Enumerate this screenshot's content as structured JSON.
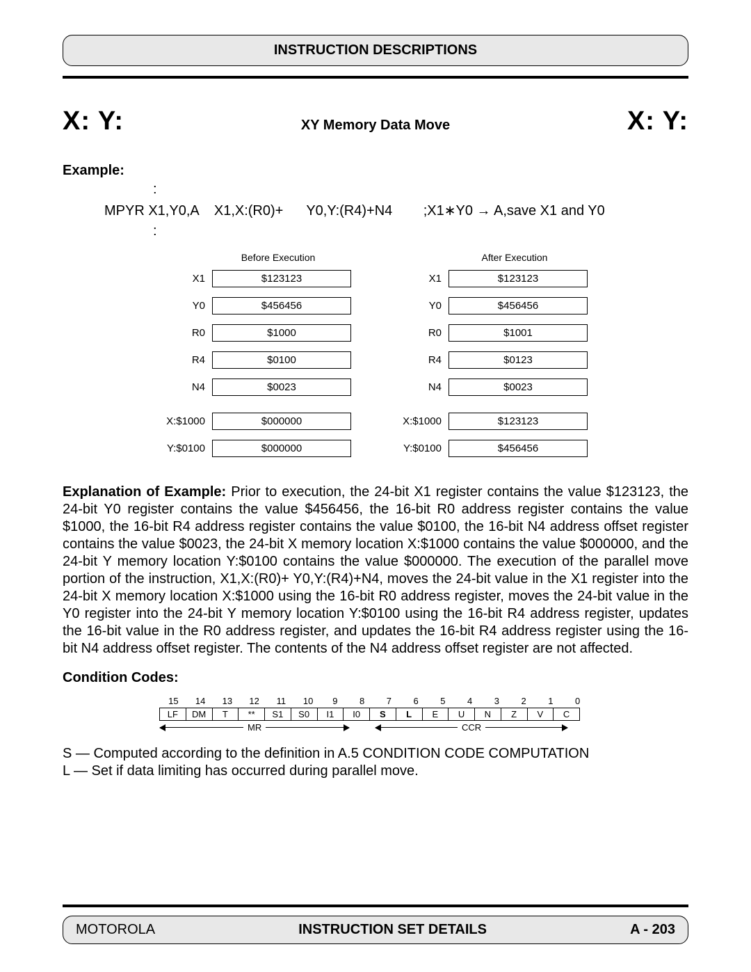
{
  "header": {
    "title": "INSTRUCTION DESCRIPTIONS"
  },
  "title": {
    "left": "X: Y:",
    "center": "XY Memory Data Move",
    "right": "X: Y:"
  },
  "example": {
    "label": "Example:",
    "code_part1": "MPYR X1,Y0,A",
    "code_part2": "X1,X:(R0)+",
    "code_part3": "Y0,Y:(R4)+N4",
    "code_comment": ";X1∗Y0 → A,save X1 and Y0"
  },
  "registers": {
    "before_header": "Before Execution",
    "after_header": "After Execution",
    "rows": [
      {
        "label": "X1",
        "before": "$123123",
        "after": "$123123"
      },
      {
        "label": "Y0",
        "before": "$456456",
        "after": "$456456"
      },
      {
        "label": "R0",
        "before": "$1000",
        "after": "$1001"
      },
      {
        "label": "R4",
        "before": "$0100",
        "after": "$0123"
      },
      {
        "label": "N4",
        "before": "$0023",
        "after": "$0023"
      },
      {
        "label": "X:$1000",
        "before": "$000000",
        "after": "$123123",
        "gap": true
      },
      {
        "label": "Y:$0100",
        "before": "$000000",
        "after": "$456456"
      }
    ]
  },
  "explanation": {
    "lead": "Explanation of Example: ",
    "body": "Prior to execution, the 24-bit X1 register contains the value $123123, the 24-bit Y0 register contains the value $456456, the 16-bit R0 address register contains the value $1000, the 16-bit R4 address register contains the value $0100, the 16-bit N4 address offset register contains the value $0023, the 24-bit X memory location X:$1000 contains the value $000000, and the 24-bit Y memory location Y:$0100 contains the value $000000. The execution of the parallel move portion of the instruction, X1,X:(R0)+ Y0,Y:(R4)+N4, moves the 24-bit value in the X1 register into the 24-bit X memory location X:$1000 using the 16-bit R0 address register, moves the 24-bit value in the Y0 register into the 24-bit Y memory location Y:$0100 using the 16-bit R4 address register, updates the 16-bit value in the R0 address register, and updates the 16-bit R4 address register using the 16-bit N4 address offset register. The contents of the N4 address offset register are not affected."
  },
  "condition_codes": {
    "label": "Condition Codes:",
    "bits": [
      "15",
      "14",
      "13",
      "12",
      "11",
      "10",
      "9",
      "8",
      "7",
      "6",
      "5",
      "4",
      "3",
      "2",
      "1",
      "0"
    ],
    "names": [
      "LF",
      "DM",
      "T",
      "**",
      "S1",
      "S0",
      "I1",
      "I0",
      "S",
      "L",
      "E",
      "U",
      "N",
      "Z",
      "V",
      "C"
    ],
    "bold_indices": [
      8,
      9
    ],
    "mr_label": "MR",
    "ccr_label": "CCR",
    "line_s": "S — Computed according to the definition in A.5 CONDITION CODE COMPUTATION",
    "line_l": "L — Set if data limiting has occurred during parallel move."
  },
  "footer": {
    "left": "MOTOROLA",
    "center": "INSTRUCTION SET DETAILS",
    "right": "A - 203"
  }
}
